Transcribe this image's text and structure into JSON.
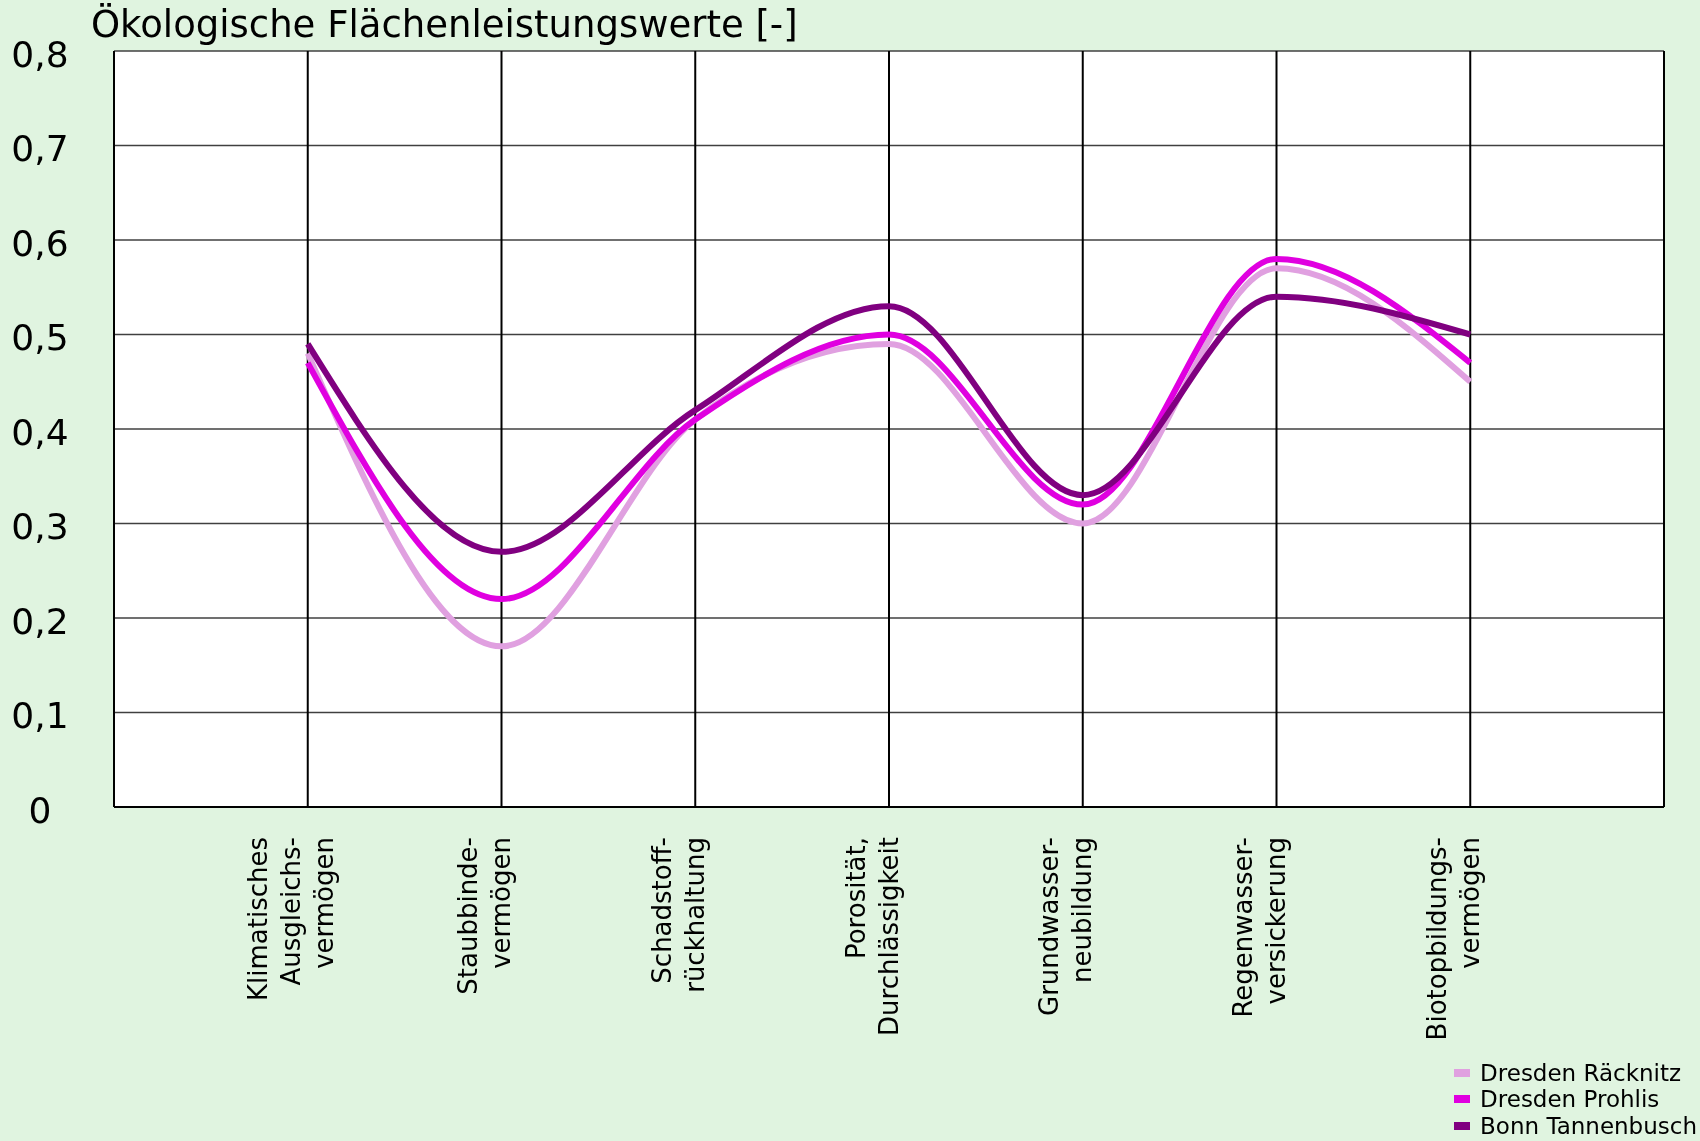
{
  "chart_data": {
    "type": "line",
    "ylabel": "Ökologische Flächenleistungswerte [-]",
    "categories": [
      "Klimatisches\nAusgleichs-\nvermögen",
      "Staubbinde-\nvermögen",
      "Schadstoff-\nrückhaltung",
      "Porosität,\nDurchlässigkeit",
      "Grundwasser-\nneubildung",
      "Regenwasser-\nversickerung",
      "Biotopbildungs-\nvermögen"
    ],
    "series": [
      {
        "name": "Dresden Räcknitz",
        "color": "#e0a0e0",
        "values": [
          0.48,
          0.17,
          0.41,
          0.49,
          0.3,
          0.57,
          0.45
        ]
      },
      {
        "name": "Dresden Prohlis",
        "color": "#e000e0",
        "values": [
          0.47,
          0.22,
          0.41,
          0.5,
          0.32,
          0.58,
          0.47
        ]
      },
      {
        "name": "Bonn Tannenbusch",
        "color": "#800080",
        "values": [
          0.49,
          0.27,
          0.42,
          0.53,
          0.33,
          0.54,
          0.5
        ]
      }
    ],
    "ylim": [
      0,
      0.8
    ],
    "yticks": [
      0,
      {
        "value": 0.1,
        "label": "0,1"
      },
      {
        "value": 0.2,
        "label": "0,2"
      },
      {
        "value": 0.3,
        "label": "0,3"
      },
      {
        "value": 0.4,
        "label": "0,4"
      },
      {
        "value": 0.5,
        "label": "0,5"
      },
      {
        "value": 0.6,
        "label": "0,6"
      },
      {
        "value": 0.7,
        "label": "0,7"
      },
      {
        "value": 0.8,
        "label": "0,8"
      }
    ],
    "grid": true,
    "legend": "bottom right",
    "marker": "none",
    "line_style": "solid"
  }
}
